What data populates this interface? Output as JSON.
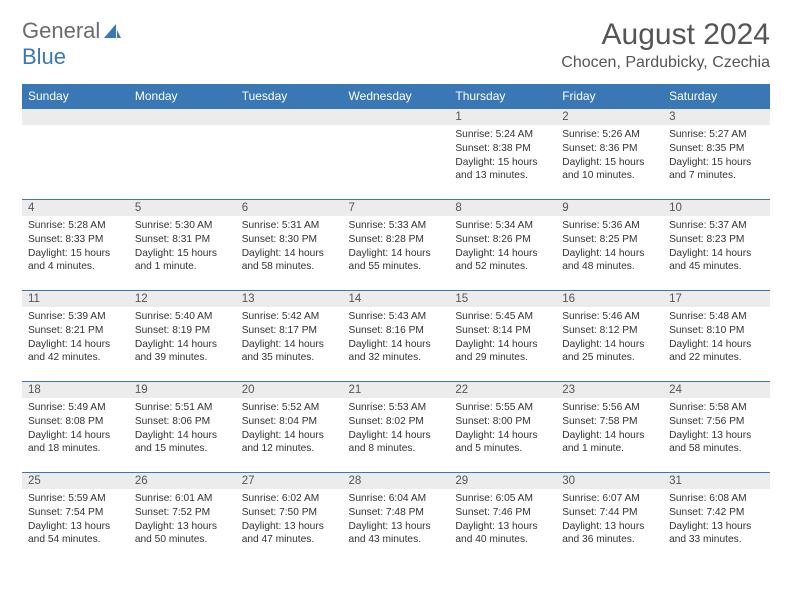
{
  "logo": {
    "word1": "General",
    "word2": "Blue"
  },
  "title": "August 2024",
  "location": "Chocen, Pardubicky, Czechia",
  "weekdays": [
    "Sunday",
    "Monday",
    "Tuesday",
    "Wednesday",
    "Thursday",
    "Friday",
    "Saturday"
  ],
  "colors": {
    "header_bg": "#3a78b5",
    "header_text": "#ffffff",
    "daynum_bg": "#ececec",
    "border": "#3a78b5",
    "title_color": "#555555"
  },
  "weeks": [
    [
      {
        "n": "",
        "sr": "",
        "ss": "",
        "dl": ""
      },
      {
        "n": "",
        "sr": "",
        "ss": "",
        "dl": ""
      },
      {
        "n": "",
        "sr": "",
        "ss": "",
        "dl": ""
      },
      {
        "n": "",
        "sr": "",
        "ss": "",
        "dl": ""
      },
      {
        "n": "1",
        "sr": "Sunrise: 5:24 AM",
        "ss": "Sunset: 8:38 PM",
        "dl": "Daylight: 15 hours and 13 minutes."
      },
      {
        "n": "2",
        "sr": "Sunrise: 5:26 AM",
        "ss": "Sunset: 8:36 PM",
        "dl": "Daylight: 15 hours and 10 minutes."
      },
      {
        "n": "3",
        "sr": "Sunrise: 5:27 AM",
        "ss": "Sunset: 8:35 PM",
        "dl": "Daylight: 15 hours and 7 minutes."
      }
    ],
    [
      {
        "n": "4",
        "sr": "Sunrise: 5:28 AM",
        "ss": "Sunset: 8:33 PM",
        "dl": "Daylight: 15 hours and 4 minutes."
      },
      {
        "n": "5",
        "sr": "Sunrise: 5:30 AM",
        "ss": "Sunset: 8:31 PM",
        "dl": "Daylight: 15 hours and 1 minute."
      },
      {
        "n": "6",
        "sr": "Sunrise: 5:31 AM",
        "ss": "Sunset: 8:30 PM",
        "dl": "Daylight: 14 hours and 58 minutes."
      },
      {
        "n": "7",
        "sr": "Sunrise: 5:33 AM",
        "ss": "Sunset: 8:28 PM",
        "dl": "Daylight: 14 hours and 55 minutes."
      },
      {
        "n": "8",
        "sr": "Sunrise: 5:34 AM",
        "ss": "Sunset: 8:26 PM",
        "dl": "Daylight: 14 hours and 52 minutes."
      },
      {
        "n": "9",
        "sr": "Sunrise: 5:36 AM",
        "ss": "Sunset: 8:25 PM",
        "dl": "Daylight: 14 hours and 48 minutes."
      },
      {
        "n": "10",
        "sr": "Sunrise: 5:37 AM",
        "ss": "Sunset: 8:23 PM",
        "dl": "Daylight: 14 hours and 45 minutes."
      }
    ],
    [
      {
        "n": "11",
        "sr": "Sunrise: 5:39 AM",
        "ss": "Sunset: 8:21 PM",
        "dl": "Daylight: 14 hours and 42 minutes."
      },
      {
        "n": "12",
        "sr": "Sunrise: 5:40 AM",
        "ss": "Sunset: 8:19 PM",
        "dl": "Daylight: 14 hours and 39 minutes."
      },
      {
        "n": "13",
        "sr": "Sunrise: 5:42 AM",
        "ss": "Sunset: 8:17 PM",
        "dl": "Daylight: 14 hours and 35 minutes."
      },
      {
        "n": "14",
        "sr": "Sunrise: 5:43 AM",
        "ss": "Sunset: 8:16 PM",
        "dl": "Daylight: 14 hours and 32 minutes."
      },
      {
        "n": "15",
        "sr": "Sunrise: 5:45 AM",
        "ss": "Sunset: 8:14 PM",
        "dl": "Daylight: 14 hours and 29 minutes."
      },
      {
        "n": "16",
        "sr": "Sunrise: 5:46 AM",
        "ss": "Sunset: 8:12 PM",
        "dl": "Daylight: 14 hours and 25 minutes."
      },
      {
        "n": "17",
        "sr": "Sunrise: 5:48 AM",
        "ss": "Sunset: 8:10 PM",
        "dl": "Daylight: 14 hours and 22 minutes."
      }
    ],
    [
      {
        "n": "18",
        "sr": "Sunrise: 5:49 AM",
        "ss": "Sunset: 8:08 PM",
        "dl": "Daylight: 14 hours and 18 minutes."
      },
      {
        "n": "19",
        "sr": "Sunrise: 5:51 AM",
        "ss": "Sunset: 8:06 PM",
        "dl": "Daylight: 14 hours and 15 minutes."
      },
      {
        "n": "20",
        "sr": "Sunrise: 5:52 AM",
        "ss": "Sunset: 8:04 PM",
        "dl": "Daylight: 14 hours and 12 minutes."
      },
      {
        "n": "21",
        "sr": "Sunrise: 5:53 AM",
        "ss": "Sunset: 8:02 PM",
        "dl": "Daylight: 14 hours and 8 minutes."
      },
      {
        "n": "22",
        "sr": "Sunrise: 5:55 AM",
        "ss": "Sunset: 8:00 PM",
        "dl": "Daylight: 14 hours and 5 minutes."
      },
      {
        "n": "23",
        "sr": "Sunrise: 5:56 AM",
        "ss": "Sunset: 7:58 PM",
        "dl": "Daylight: 14 hours and 1 minute."
      },
      {
        "n": "24",
        "sr": "Sunrise: 5:58 AM",
        "ss": "Sunset: 7:56 PM",
        "dl": "Daylight: 13 hours and 58 minutes."
      }
    ],
    [
      {
        "n": "25",
        "sr": "Sunrise: 5:59 AM",
        "ss": "Sunset: 7:54 PM",
        "dl": "Daylight: 13 hours and 54 minutes."
      },
      {
        "n": "26",
        "sr": "Sunrise: 6:01 AM",
        "ss": "Sunset: 7:52 PM",
        "dl": "Daylight: 13 hours and 50 minutes."
      },
      {
        "n": "27",
        "sr": "Sunrise: 6:02 AM",
        "ss": "Sunset: 7:50 PM",
        "dl": "Daylight: 13 hours and 47 minutes."
      },
      {
        "n": "28",
        "sr": "Sunrise: 6:04 AM",
        "ss": "Sunset: 7:48 PM",
        "dl": "Daylight: 13 hours and 43 minutes."
      },
      {
        "n": "29",
        "sr": "Sunrise: 6:05 AM",
        "ss": "Sunset: 7:46 PM",
        "dl": "Daylight: 13 hours and 40 minutes."
      },
      {
        "n": "30",
        "sr": "Sunrise: 6:07 AM",
        "ss": "Sunset: 7:44 PM",
        "dl": "Daylight: 13 hours and 36 minutes."
      },
      {
        "n": "31",
        "sr": "Sunrise: 6:08 AM",
        "ss": "Sunset: 7:42 PM",
        "dl": "Daylight: 13 hours and 33 minutes."
      }
    ]
  ]
}
